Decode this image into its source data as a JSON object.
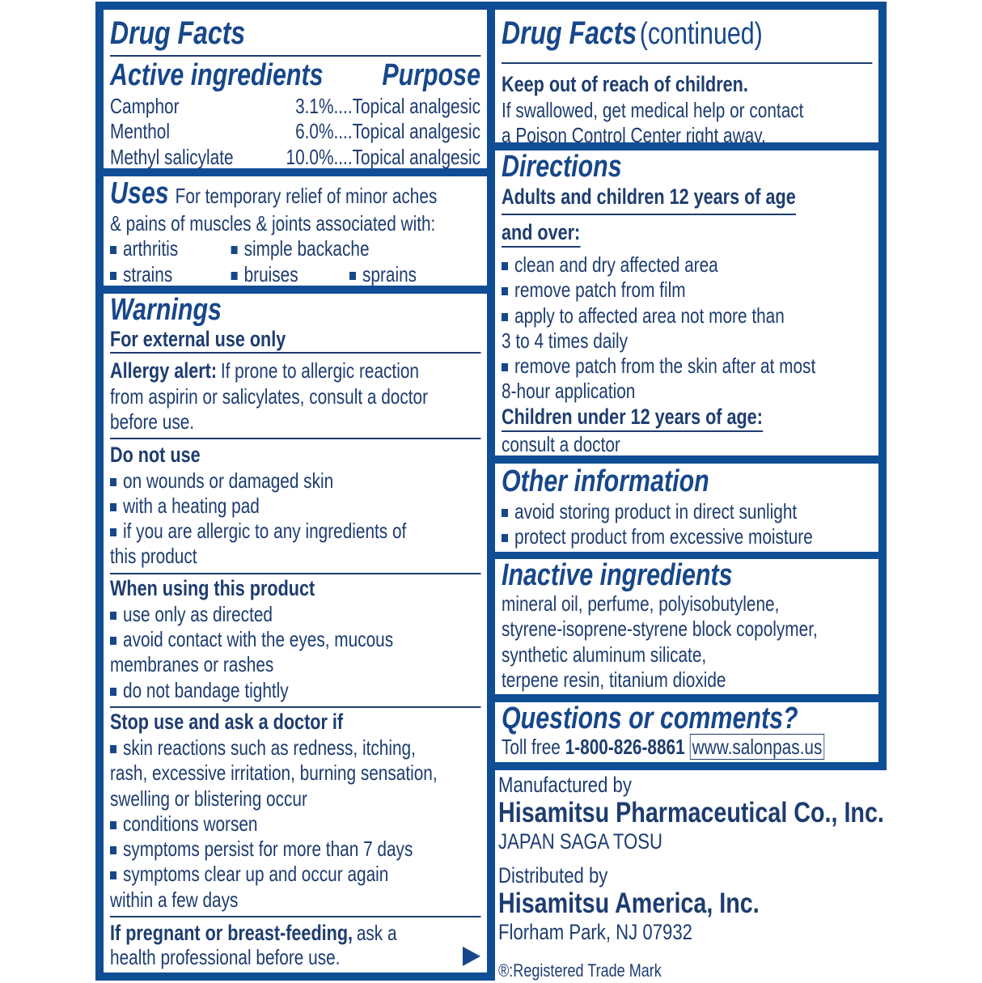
{
  "colors": {
    "frame": "#0f4d94",
    "text": "#1d3c70"
  },
  "left": {
    "title": "Drug Facts",
    "active": {
      "heading": "Active ingredients",
      "purpose_heading": "Purpose",
      "rows": [
        {
          "name": "Camphor",
          "value": "3.1%....Topical analgesic"
        },
        {
          "name": "Menthol",
          "value": "6.0%....Topical analgesic"
        },
        {
          "name": "Methyl salicylate",
          "value": "10.0%....Topical analgesic"
        }
      ]
    },
    "uses": {
      "heading": "Uses",
      "line1": "For temporary relief of minor aches",
      "line2": "& pains of muscles & joints associated with:",
      "items": [
        "arthritis",
        "simple backache",
        "strains",
        "bruises",
        "sprains"
      ]
    },
    "warnings": {
      "heading": "Warnings",
      "external": "For external use only",
      "allergy_label": "Allergy alert:",
      "allergy_lines": [
        "If prone to allergic reaction",
        "from aspirin or salicylates, consult a doctor",
        "before use."
      ],
      "do_not_use": {
        "heading": "Do not use",
        "lines": [
          "on wounds or damaged skin",
          "with a heating pad",
          "if you are allergic to any ingredients of",
          "this product"
        ]
      },
      "when_using": {
        "heading": "When using this product",
        "lines": [
          "use only as directed",
          "avoid contact with the eyes, mucous",
          "membranes or rashes",
          "do not bandage tightly"
        ]
      },
      "stop_use": {
        "heading": "Stop use and ask a doctor if",
        "lines": [
          "skin reactions such as redness, itching,",
          "rash, excessive irritation, burning sensation,",
          "swelling or blistering occur",
          "conditions worsen",
          "symptoms persist for more than 7 days",
          "symptoms clear up and occur again",
          "within a few days"
        ]
      },
      "pregnant_label": "If pregnant or breast-feeding,",
      "pregnant_rest": "ask a",
      "pregnant_line2": "health professional before use.",
      "continue_icon": "right-triangle-icon"
    }
  },
  "right": {
    "title": "Drug Facts",
    "title_suffix": "(continued)",
    "keep_out": {
      "heading": "Keep out of reach of children.",
      "lines": [
        "If swallowed, get medical help or contact",
        "a Poison Control Center right away."
      ]
    },
    "directions": {
      "heading": "Directions",
      "adults_line1": "Adults and children 12 years of age",
      "adults_line2": "and over:",
      "lines": [
        "clean and dry affected area",
        "remove patch from film",
        "apply to affected area not more than",
        "3 to 4 times daily",
        "remove patch from the skin after at most",
        "8-hour application"
      ],
      "children_heading": "Children under 12 years of age:",
      "children_text": "consult a doctor"
    },
    "other": {
      "heading": "Other information",
      "lines": [
        "avoid storing product in direct sunlight",
        "protect product from excessive moisture"
      ]
    },
    "inactive": {
      "heading": "Inactive ingredients",
      "lines": [
        "mineral oil, perfume, polyisobutylene,",
        "styrene-isoprene-styrene block copolymer,",
        "synthetic aluminum silicate,",
        "terpene resin, titanium dioxide"
      ]
    },
    "questions": {
      "heading": "Questions or comments?",
      "toll_label": "Toll free",
      "phone": "1-800-826-8861",
      "website": "www.salonpas.us"
    },
    "manufacturer": {
      "label": "Manufactured by",
      "name": "Hisamitsu Pharmaceutical Co., Inc.",
      "location": "JAPAN SAGA TOSU"
    },
    "distributor": {
      "label": "Distributed by",
      "name": "Hisamitsu America, Inc.",
      "location": "Florham Park, NJ 07932"
    },
    "trademark": "®:Registered Trade Mark"
  }
}
